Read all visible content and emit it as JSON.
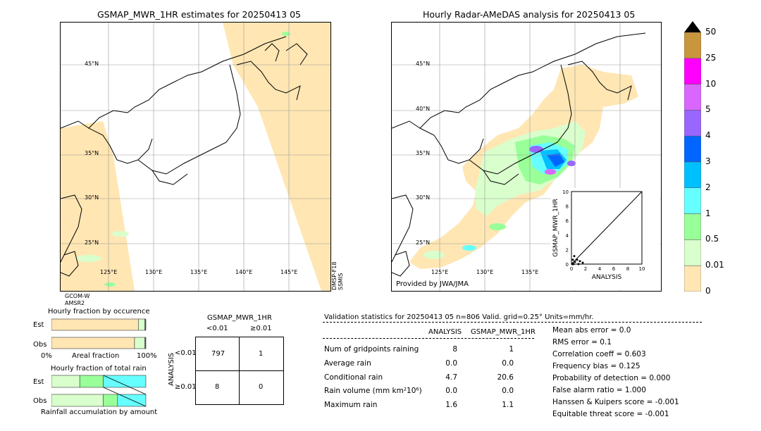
{
  "left_map": {
    "title": "GSMAP_MWR_1HR estimates for 20250413 05",
    "lat_labels": [
      "45°N",
      "40°N",
      "35°N",
      "30°N",
      "25°N"
    ],
    "lon_labels": [
      "125°E",
      "130°E",
      "135°E",
      "140°E",
      "145°E"
    ],
    "satellite_left": "GCOM-W\nAMSR2",
    "satellite_right": "DMSP-F18\nSSMIS"
  },
  "right_map": {
    "title": "Hourly Radar-AMeDAS analysis for 20250413 05",
    "lat_labels": [
      "45°N",
      "40°N",
      "35°N",
      "30°N",
      "25°N"
    ],
    "lon_labels": [
      "125°E",
      "130°E",
      "135°E"
    ],
    "provider": "Provided by JWA/JMA"
  },
  "scatter": {
    "xlabel": "ANALYSIS",
    "ylabel": "GSMAP_MWR_1HR",
    "ticks": [
      "0",
      "2",
      "4",
      "6",
      "8",
      "10"
    ]
  },
  "colorbar": {
    "labels": [
      "50",
      "25",
      "10",
      "5",
      "4",
      "3",
      "2",
      "1",
      "0.5",
      "0.01",
      "0"
    ],
    "colors": [
      "#c8963c",
      "#ff00ff",
      "#d966ff",
      "#9966ff",
      "#0066ff",
      "#00bfff",
      "#66ffff",
      "#99ff99",
      "#d9ffcc",
      "#ffe6b3"
    ]
  },
  "fraction_occurrence": {
    "title": "Hourly fraction by occurence",
    "row_est": "Est",
    "row_obs": "Obs",
    "xlabel_left": "0%",
    "xlabel_mid": "Areal fraction",
    "xlabel_right": "100%"
  },
  "fraction_total": {
    "title": "Hourly fraction of total rain",
    "row_est": "Est",
    "row_obs": "Obs",
    "xlabel": "Rainfall accumulation by amount"
  },
  "contingency": {
    "title": "GSMAP_MWR_1HR",
    "col_lt": "<0.01",
    "col_ge": "≥0.01",
    "row_axis": "ANALYSIS",
    "row_lt": "<0.01",
    "row_ge": "≥0.01",
    "cells": [
      "797",
      "1",
      "8",
      "0"
    ]
  },
  "validation": {
    "header": "Validation statistics for 20250413 05  n=806 Valid. grid=0.25° Units=mm/hr.",
    "col_analysis": "ANALYSIS",
    "col_gsmap": "GSMAP_MWR_1HR",
    "rows": [
      {
        "label": "Num of gridpoints raining",
        "analysis": "8",
        "gsmap": "1"
      },
      {
        "label": "Average rain",
        "analysis": "0.0",
        "gsmap": "0.0"
      },
      {
        "label": "Conditional rain",
        "analysis": "4.7",
        "gsmap": "20.6"
      },
      {
        "label": "Rain volume (mm km²10⁶)",
        "analysis": "0.0",
        "gsmap": "0.0"
      },
      {
        "label": "Maximum rain",
        "analysis": "1.6",
        "gsmap": "1.1"
      }
    ],
    "scores": [
      "Mean abs error =    0.0",
      "RMS error =    0.1",
      "Correlation coeff =  0.603",
      "Frequency bias =  0.125",
      "Probability of detection =  0.000",
      "False alarm ratio =  1.000",
      "Hanssen & Kuipers score = -0.001",
      "Equitable threat score = -0.001"
    ]
  },
  "chart_data": [
    {
      "type": "scatter",
      "title": "",
      "xlabel": "ANALYSIS",
      "ylabel": "GSMAP_MWR_1HR",
      "xlim": [
        0,
        10
      ],
      "ylim": [
        0,
        10
      ],
      "points": [
        [
          0.1,
          0.0
        ],
        [
          0.2,
          0.1
        ],
        [
          0.3,
          0.0
        ],
        [
          0.5,
          0.3
        ],
        [
          0.8,
          0.6
        ],
        [
          1.0,
          0.0
        ],
        [
          1.2,
          0.4
        ],
        [
          0.4,
          1.1
        ],
        [
          1.6,
          0.2
        ],
        [
          0.2,
          0.6
        ]
      ]
    },
    {
      "type": "bar",
      "title": "Hourly fraction by occurence",
      "categories": [
        "Est",
        "Obs"
      ],
      "series": [
        {
          "values": [
            0.92,
            0.88
          ]
        },
        {
          "values": [
            0.07,
            0.11
          ]
        },
        {
          "values": [
            0.01,
            0.01
          ]
        }
      ]
    },
    {
      "type": "bar",
      "title": "Hourly fraction of total rain",
      "categories": [
        "Est",
        "Obs"
      ],
      "series": [
        {
          "values": [
            0.3,
            0.55
          ]
        },
        {
          "values": [
            0.25,
            0.15
          ]
        },
        {
          "values": [
            0.45,
            0.3
          ]
        }
      ]
    }
  ]
}
